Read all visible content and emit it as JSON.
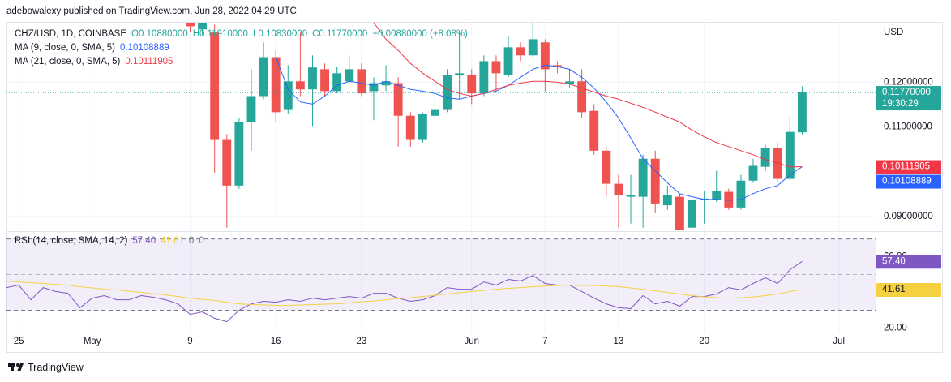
{
  "header": "adebowalexy published on TradingView.com, Jun 28, 2022 04:29 UTC",
  "footer": "TradingView",
  "chart_data": [
    {
      "type": "candlestick",
      "symbol": "CHZ/USD, 1D, COINBASE",
      "ohlc_legend": [
        "O0.10880000",
        "H0.11910000",
        "L0.10830000",
        "C0.11770000",
        "+0.00880000 (+8.08%)"
      ],
      "currency": "USD",
      "last_price_label": "0.11770000",
      "countdown": "19:30:29",
      "up_color": "#26a69a",
      "down_color": "#ef5350",
      "x": [
        "2022-05-09",
        "2022-05-10",
        "2022-05-11",
        "2022-05-12",
        "2022-05-13",
        "2022-05-14",
        "2022-05-15",
        "2022-05-16",
        "2022-05-17",
        "2022-05-18",
        "2022-05-19",
        "2022-05-20",
        "2022-05-21",
        "2022-05-22",
        "2022-05-23",
        "2022-05-24",
        "2022-05-25",
        "2022-05-26",
        "2022-05-27",
        "2022-05-28",
        "2022-05-29",
        "2022-05-30",
        "2022-05-31",
        "2022-06-01",
        "2022-06-02",
        "2022-06-03",
        "2022-06-04",
        "2022-06-05",
        "2022-06-06",
        "2022-06-07",
        "2022-06-08",
        "2022-06-09",
        "2022-06-10",
        "2022-06-11",
        "2022-06-12",
        "2022-06-13",
        "2022-06-14",
        "2022-06-15",
        "2022-06-16",
        "2022-06-17",
        "2022-06-18",
        "2022-06-19",
        "2022-06-20",
        "2022-06-21",
        "2022-06-22",
        "2022-06-23",
        "2022-06-24",
        "2022-06-25",
        "2022-06-26",
        "2022-06-27",
        "2022-06-28"
      ],
      "open": [
        0.1347,
        0.1318,
        0.1311,
        0.1071,
        0.0969,
        0.1111,
        0.1169,
        0.1256,
        0.1138,
        0.1202,
        0.1184,
        0.1229,
        0.118,
        0.1202,
        0.1229,
        0.118,
        0.1193,
        0.1198,
        0.1125,
        0.1071,
        0.1125,
        0.1138,
        0.1215,
        0.1216,
        0.1175,
        0.1247,
        0.1216,
        0.1278,
        0.126,
        0.1289,
        0.1238,
        0.1196,
        0.1202,
        0.1136,
        0.1047,
        0.0973,
        0.0944,
        0.0944,
        0.1029,
        0.0925,
        0.0944,
        0.0875,
        0.0936,
        0.0938,
        0.0955,
        0.092,
        0.098,
        0.1011,
        0.1053,
        0.0984,
        0.1088
      ],
      "high": [
        0.1365,
        0.1356,
        0.1329,
        0.1084,
        0.112,
        0.1229,
        0.1289,
        0.1271,
        0.1238,
        0.1311,
        0.126,
        0.1242,
        0.1235,
        0.126,
        0.1242,
        0.1211,
        0.1238,
        0.1211,
        0.1133,
        0.1133,
        0.1165,
        0.1229,
        0.1311,
        0.1229,
        0.126,
        0.126,
        0.1302,
        0.1289,
        0.1333,
        0.1296,
        0.1247,
        0.1229,
        0.1229,
        0.1151,
        0.1056,
        0.0993,
        0.0993,
        0.1038,
        0.1047,
        0.0969,
        0.0951,
        0.0947,
        0.0956,
        0.1002,
        0.0962,
        0.0993,
        0.1029,
        0.106,
        0.1065,
        0.1124,
        0.1191
      ],
      "low": [
        0.1311,
        0.1302,
        0.0998,
        0.0875,
        0.0962,
        0.1047,
        0.1162,
        0.1111,
        0.1129,
        0.1169,
        0.1102,
        0.1169,
        0.1175,
        0.1196,
        0.1169,
        0.1115,
        0.118,
        0.1056,
        0.1056,
        0.1065,
        0.112,
        0.1133,
        0.1162,
        0.1151,
        0.1169,
        0.118,
        0.1211,
        0.1247,
        0.1256,
        0.118,
        0.122,
        0.1187,
        0.112,
        0.1038,
        0.0944,
        0.0875,
        0.0884,
        0.0875,
        0.0907,
        0.0915,
        0.0856,
        0.0865,
        0.0884,
        0.0933,
        0.0915,
        0.0915,
        0.0975,
        0.1002,
        0.0975,
        0.098,
        0.1083
      ],
      "close": [
        0.1325,
        0.1338,
        0.1071,
        0.0969,
        0.1111,
        0.1169,
        0.1256,
        0.1133,
        0.1202,
        0.1184,
        0.1233,
        0.118,
        0.122,
        0.1229,
        0.1175,
        0.1198,
        0.1202,
        0.1125,
        0.1071,
        0.1129,
        0.1138,
        0.1216,
        0.122,
        0.1175,
        0.1247,
        0.122,
        0.1278,
        0.126,
        0.1296,
        0.1229,
        0.1235,
        0.1202,
        0.1133,
        0.1047,
        0.0973,
        0.0947,
        0.0947,
        0.1029,
        0.0929,
        0.0947,
        0.0869,
        0.0938,
        0.094,
        0.0956,
        0.092,
        0.098,
        0.1013,
        0.1053,
        0.0984,
        0.1089,
        0.1177
      ],
      "series": [
        {
          "name": "MA (9, close, 0, SMA, 5)",
          "color": "#2962ff",
          "last_value_label": "0.10108889",
          "values": [
            null,
            null,
            null,
            null,
            null,
            null,
            null,
            0.1256,
            0.1184,
            0.1156,
            0.1151,
            0.1169,
            0.1193,
            0.1202,
            0.1198,
            0.1193,
            0.1202,
            0.1193,
            0.1184,
            0.118,
            0.1175,
            0.1165,
            0.1162,
            0.1169,
            0.1175,
            0.118,
            0.1193,
            0.1211,
            0.1229,
            0.1238,
            0.1235,
            0.1229,
            0.1211,
            0.1187,
            0.1156,
            0.112,
            0.1075,
            0.1029,
            0.1002,
            0.0975,
            0.0951,
            0.0944,
            0.0938,
            0.0938,
            0.0936,
            0.0938,
            0.0951,
            0.0962,
            0.0969,
            0.0993,
            0.10108889
          ]
        },
        {
          "name": "MA (21, close, 0, SMA, 5)",
          "color": "#f23645",
          "last_value_label": "0.10111905",
          "values": [
            null,
            null,
            null,
            null,
            null,
            null,
            null,
            null,
            null,
            null,
            null,
            null,
            null,
            null,
            null,
            0.1333,
            0.1296,
            0.1271,
            0.1242,
            0.122,
            0.1202,
            0.1184,
            0.1175,
            0.1169,
            0.1175,
            0.1184,
            0.1193,
            0.1198,
            0.1202,
            0.1202,
            0.12,
            0.1196,
            0.1187,
            0.1178,
            0.1169,
            0.1162,
            0.1153,
            0.1144,
            0.1133,
            0.1122,
            0.1111,
            0.1093,
            0.1078,
            0.1065,
            0.1056,
            0.1047,
            0.1038,
            0.1027,
            0.102,
            0.1011,
            0.10111905
          ]
        }
      ],
      "last_price_color": "#26a69a",
      "xlim": [
        "2022-04-24",
        "2022-07-04"
      ],
      "xticks": [
        {
          "value": "2022-04-25",
          "label": "25"
        },
        {
          "value": "2022-05-01",
          "label": "May"
        },
        {
          "value": "2022-05-09",
          "label": "9"
        },
        {
          "value": "2022-05-16",
          "label": "16"
        },
        {
          "value": "2022-05-23",
          "label": "23"
        },
        {
          "value": "2022-06-01",
          "label": "Jun"
        },
        {
          "value": "2022-06-07",
          "label": "7"
        },
        {
          "value": "2022-06-13",
          "label": "13"
        },
        {
          "value": "2022-06-20",
          "label": "20"
        },
        {
          "value": "2022-07-01",
          "label": "Jul"
        }
      ],
      "ylim": [
        0.0869,
        0.1333
      ],
      "yticks": [
        {
          "value": 0.09,
          "label": "0.09000000"
        },
        {
          "value": 0.11,
          "label": "0.11000000"
        },
        {
          "value": 0.12,
          "label": "0.12000000"
        }
      ],
      "grid": true
    },
    {
      "type": "line",
      "title": "RSI (14, close, SMA, 14, 2)",
      "legend_extras": [
        "0",
        "0"
      ],
      "x": [
        "2022-04-24",
        "2022-04-25",
        "2022-04-26",
        "2022-04-27",
        "2022-04-28",
        "2022-04-29",
        "2022-04-30",
        "2022-05-01",
        "2022-05-02",
        "2022-05-03",
        "2022-05-04",
        "2022-05-05",
        "2022-05-06",
        "2022-05-07",
        "2022-05-08",
        "2022-05-09",
        "2022-05-10",
        "2022-05-11",
        "2022-05-12",
        "2022-05-13",
        "2022-05-14",
        "2022-05-15",
        "2022-05-16",
        "2022-05-17",
        "2022-05-18",
        "2022-05-19",
        "2022-05-20",
        "2022-05-21",
        "2022-05-22",
        "2022-05-23",
        "2022-05-24",
        "2022-05-25",
        "2022-05-26",
        "2022-05-27",
        "2022-05-28",
        "2022-05-29",
        "2022-05-30",
        "2022-05-31",
        "2022-06-01",
        "2022-06-02",
        "2022-06-03",
        "2022-06-04",
        "2022-06-05",
        "2022-06-06",
        "2022-06-07",
        "2022-06-08",
        "2022-06-09",
        "2022-06-10",
        "2022-06-11",
        "2022-06-12",
        "2022-06-13",
        "2022-06-14",
        "2022-06-15",
        "2022-06-16",
        "2022-06-17",
        "2022-06-18",
        "2022-06-19",
        "2022-06-20",
        "2022-06-21",
        "2022-06-22",
        "2022-06-23",
        "2022-06-24",
        "2022-06-25",
        "2022-06-26",
        "2022-06-27",
        "2022-06-28"
      ],
      "series": [
        {
          "color": "#7e57c2",
          "label_text_color": "#ffffff",
          "last_value_label": "57.40",
          "values": [
            42.7,
            44.1,
            35.9,
            42.7,
            40.5,
            39.5,
            31.4,
            36.8,
            38.2,
            35.9,
            35.9,
            38.2,
            37.3,
            35.9,
            33.6,
            27.7,
            29.1,
            25.5,
            23.6,
            30.0,
            33.6,
            35.0,
            34.5,
            35.9,
            35.0,
            36.8,
            35.9,
            36.8,
            37.7,
            36.8,
            39.5,
            39.5,
            36.8,
            35.0,
            35.9,
            38.2,
            42.7,
            41.8,
            41.8,
            45.9,
            44.1,
            47.3,
            46.4,
            49.5,
            45.0,
            44.1,
            44.1,
            40.5,
            36.8,
            33.6,
            31.4,
            30.9,
            38.2,
            33.6,
            35.0,
            32.3,
            37.7,
            37.7,
            39.1,
            42.7,
            41.4,
            45.0,
            48.2,
            45.0,
            52.7,
            57.4
          ]
        },
        {
          "color": "#f5d142",
          "label_text_color": "#131722",
          "last_value_label": "41.61",
          "values": [
            46.4,
            45.9,
            45.5,
            45.0,
            44.5,
            44.1,
            43.2,
            42.5,
            41.8,
            41.4,
            40.7,
            40.0,
            39.3,
            38.6,
            37.7,
            36.8,
            36.1,
            35.5,
            34.5,
            33.6,
            33.2,
            33.0,
            32.7,
            32.7,
            33.0,
            33.2,
            33.4,
            33.6,
            34.1,
            34.8,
            35.2,
            35.9,
            36.6,
            37.0,
            37.7,
            38.4,
            39.1,
            39.8,
            40.5,
            41.1,
            41.8,
            42.3,
            42.7,
            43.2,
            43.6,
            43.9,
            44.1,
            43.9,
            43.9,
            43.6,
            43.2,
            42.5,
            41.8,
            40.9,
            40.0,
            39.1,
            38.2,
            37.5,
            37.0,
            36.8,
            37.0,
            37.5,
            38.2,
            39.1,
            40.5,
            41.61
          ]
        }
      ],
      "bands": [
        30,
        70
      ],
      "midline": 50,
      "band_color": "#7e57c2",
      "ylim": [
        17.5,
        73
      ],
      "yticks": [
        {
          "value": 20,
          "label": "20.00"
        },
        {
          "value": 60,
          "label": "60.00"
        }
      ]
    }
  ]
}
